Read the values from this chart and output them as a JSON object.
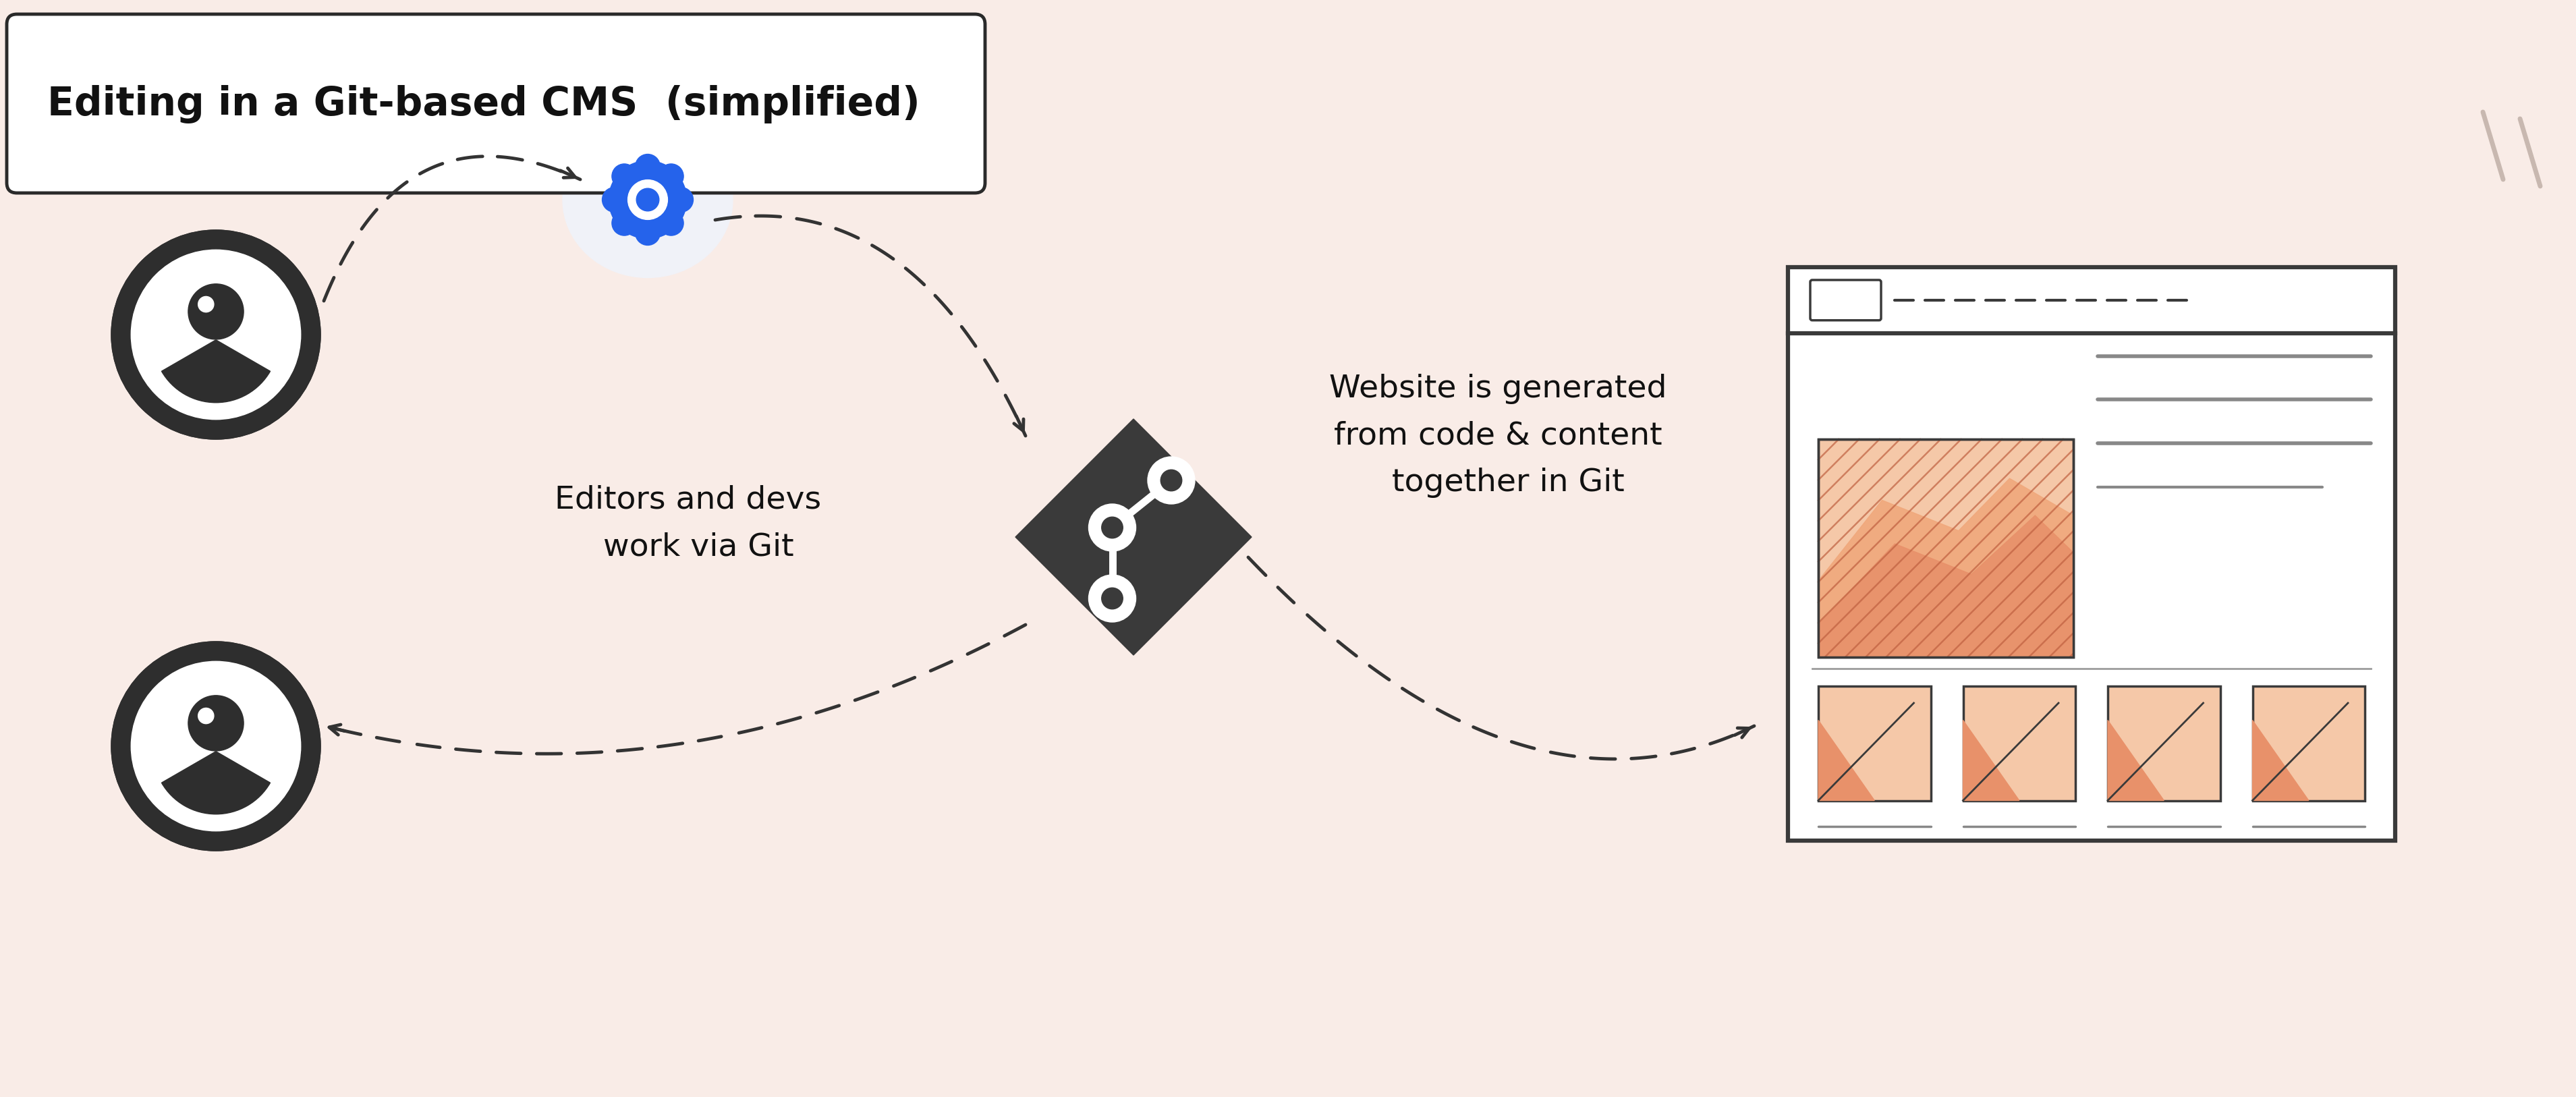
{
  "title": "Editing in a Git-based CMS  (simplified)",
  "bg_color": "#f9ece7",
  "title_box_color": "#ffffff",
  "title_border_color": "#2a2a2a",
  "text_color": "#111111",
  "label1": "Editors and devs\n  work via Git",
  "label2": "Website is generated\nfrom code & content\n  together in Git",
  "person_color": "#2e2e2e",
  "person_white": "#ffffff",
  "git_icon_color": "#3a3a3a",
  "cms_icon_blue": "#2563eb",
  "cms_bg": "#f0f2f8",
  "browser_border": "#3a3a3a",
  "browser_fill": "#ffffff",
  "chart_orange": "#e8916a",
  "chart_orange2": "#f0a87c",
  "chart_orange_fill": "#f5c8a8",
  "chart_line_color": "#c06040",
  "arrow_color": "#333333",
  "deco_color": "#c8b8b0",
  "label_font_size": 34,
  "title_font_size": 42
}
